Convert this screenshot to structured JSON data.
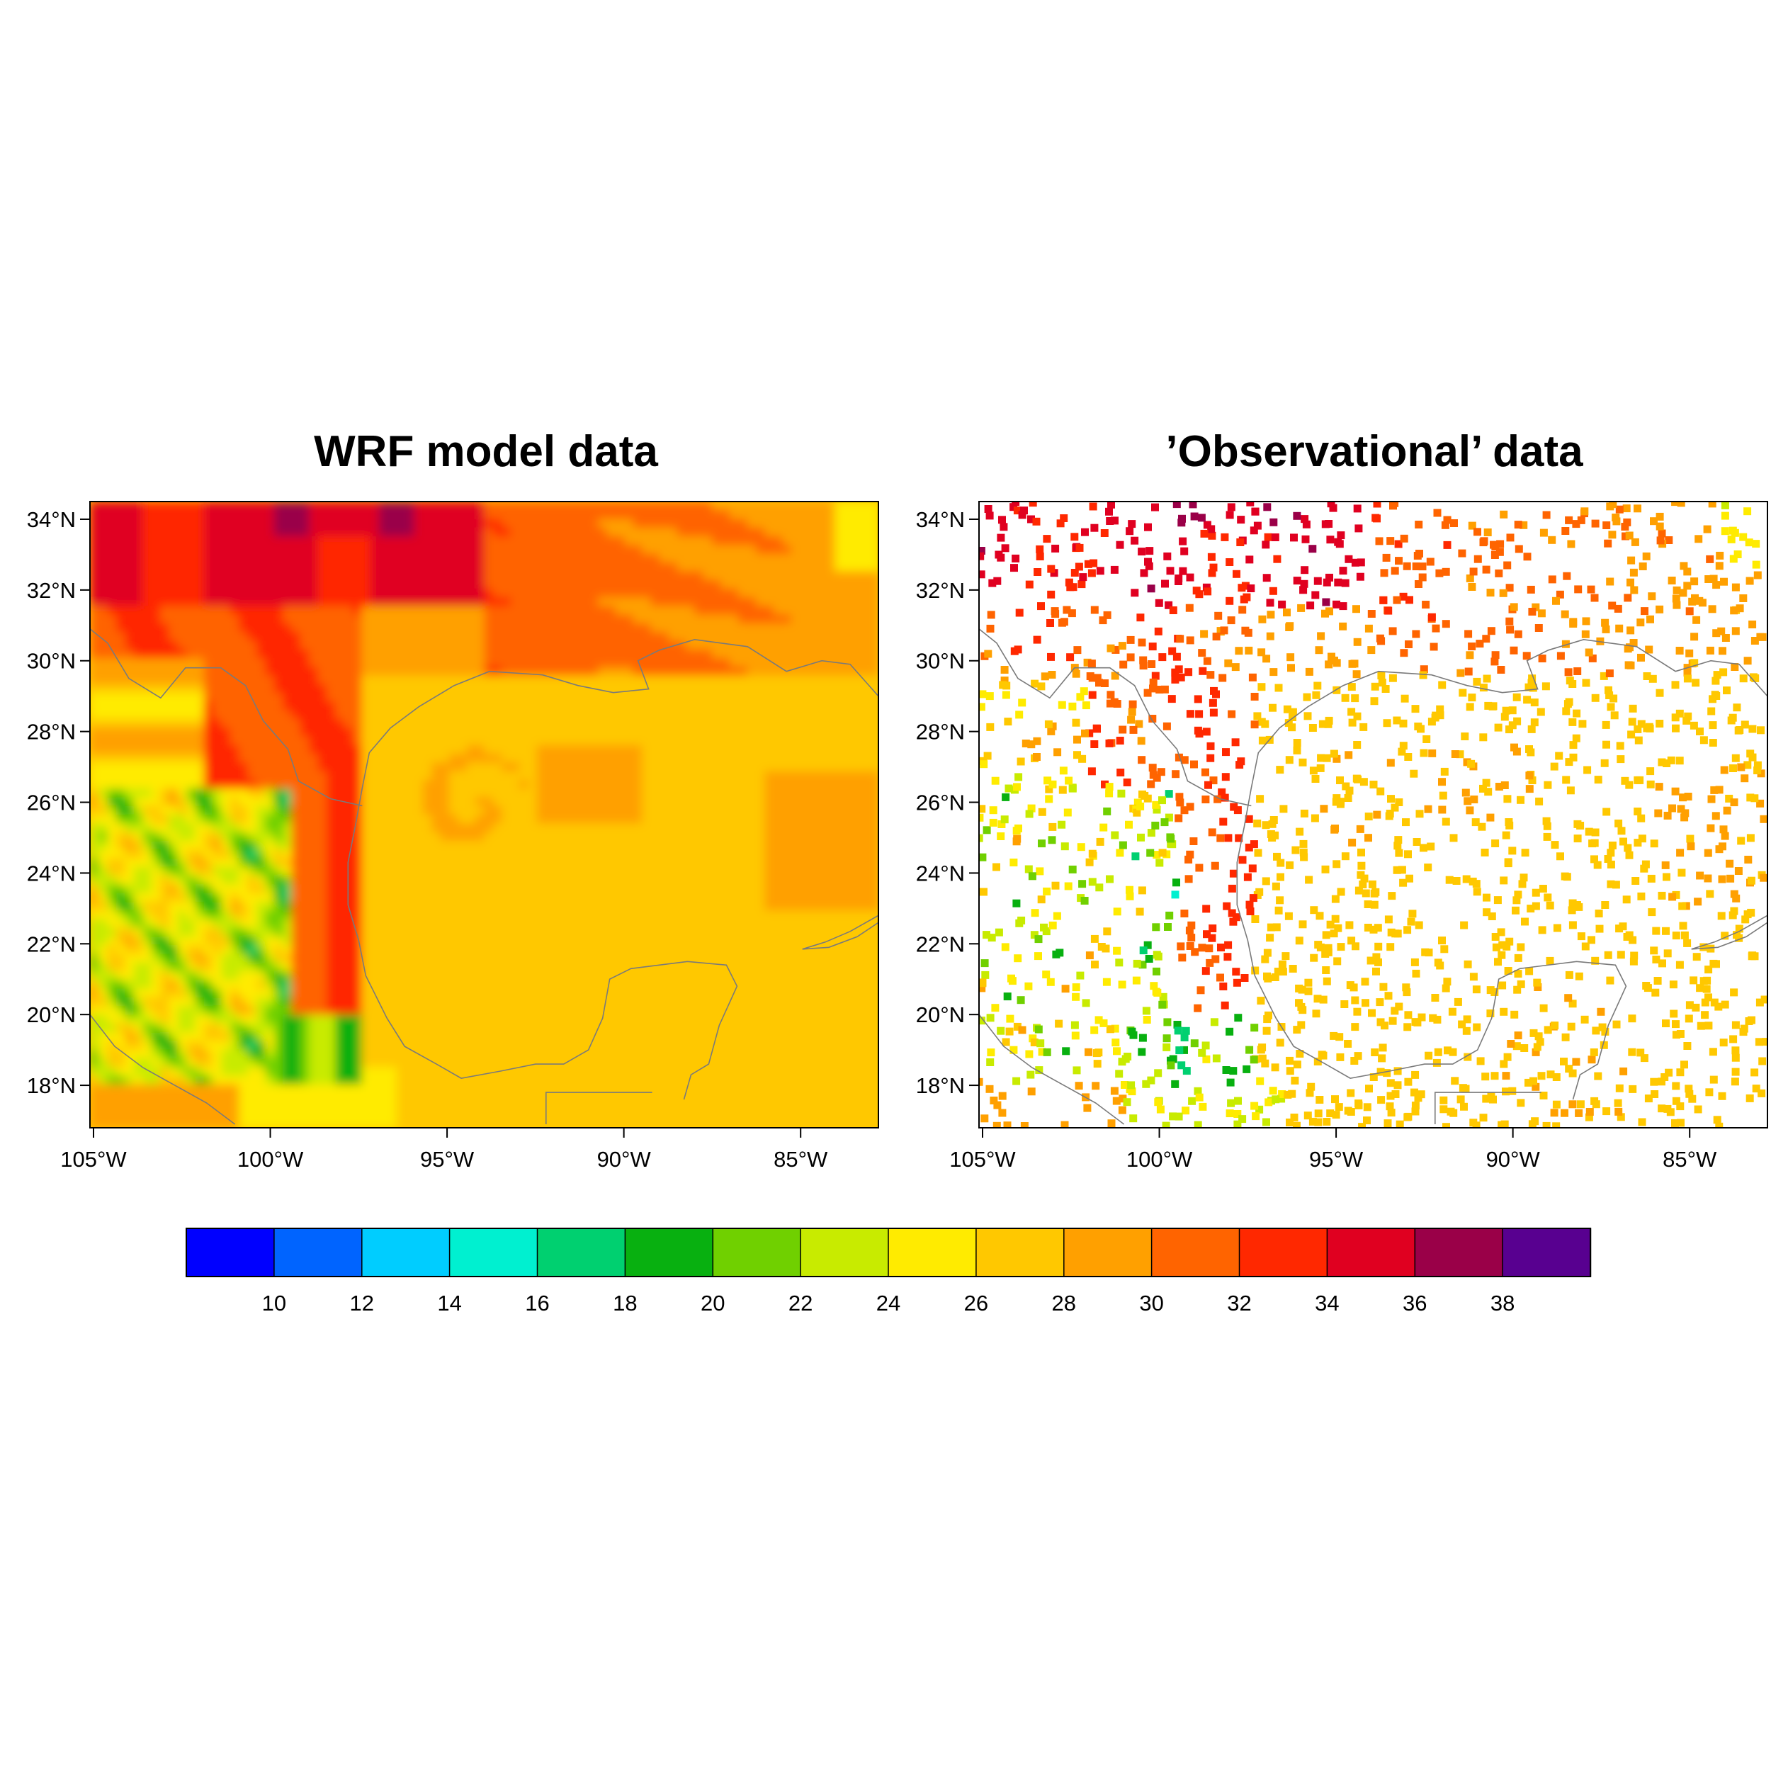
{
  "figure": {
    "panels": [
      {
        "id": "model",
        "title": "WRF model data"
      },
      {
        "id": "obs",
        "title": "’Observational’ data"
      }
    ],
    "lon_ticks": [
      "105°W",
      "100°W",
      "95°W",
      "90°W",
      "85°W"
    ],
    "lat_ticks": [
      "34°N",
      "32°N",
      "30°N",
      "28°N",
      "26°N",
      "24°N",
      "22°N",
      "20°N",
      "18°N"
    ]
  },
  "chart_data": {
    "type": "heatmap",
    "projection": "lat-lon",
    "lon_range": [
      -105.1,
      -82.8
    ],
    "lat_range": [
      16.8,
      34.5
    ],
    "lon_tick_values": [
      -105,
      -100,
      -95,
      -90,
      -85
    ],
    "lat_tick_values": [
      34,
      32,
      30,
      28,
      26,
      24,
      22,
      20,
      18
    ],
    "panels": [
      "WRF model data",
      "’Observational’ data"
    ],
    "colorbar": {
      "labels": [
        "10",
        "12",
        "14",
        "16",
        "18",
        "20",
        "22",
        "24",
        "26",
        "28",
        "30",
        "32",
        "34",
        "36",
        "38"
      ],
      "levels": [
        10,
        12,
        14,
        16,
        18,
        20,
        22,
        24,
        26,
        28,
        30,
        32,
        34,
        36,
        38
      ],
      "colors": [
        "#0000ff",
        "#0064ff",
        "#00cdff",
        "#00f0d0",
        "#00d070",
        "#08b010",
        "#70d000",
        "#c8eb00",
        "#ffeb00",
        "#ffc800",
        "#ffa000",
        "#ff6400",
        "#ff2800",
        "#e00020",
        "#9a0048",
        "#580090"
      ]
    }
  }
}
